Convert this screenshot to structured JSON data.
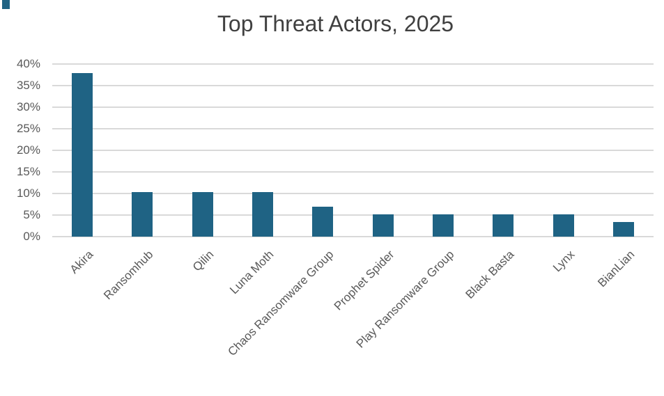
{
  "page": {
    "background": "#ffffff"
  },
  "chart_data": {
    "type": "bar",
    "title": "Top Threat Actors, 2025",
    "categories": [
      "Akira",
      "Ransomhub",
      "Qilin",
      "Luna Moth",
      "Chaos Ransomware Group",
      "Prophet Spider",
      "Play Ransomware Group",
      "Black Basta",
      "Lynx",
      "BianLian"
    ],
    "values": [
      37.9,
      10.3,
      10.3,
      10.3,
      6.9,
      5.2,
      5.2,
      5.2,
      5.2,
      3.4
    ],
    "value_unit": "percent",
    "xlabel": "",
    "ylabel": "",
    "ylim": [
      0,
      40
    ],
    "ytick_values": [
      0,
      5,
      10,
      15,
      20,
      25,
      30,
      35,
      40
    ],
    "ytick_labels": [
      "0%",
      "5%",
      "10%",
      "15%",
      "20%",
      "25%",
      "30%",
      "35%",
      "40%"
    ],
    "grid": true,
    "legend_position": "none",
    "colors": {
      "bar": "#1f6384",
      "gridline": "#d9d9d9",
      "tick_label": "#595959",
      "title": "#404040"
    }
  }
}
